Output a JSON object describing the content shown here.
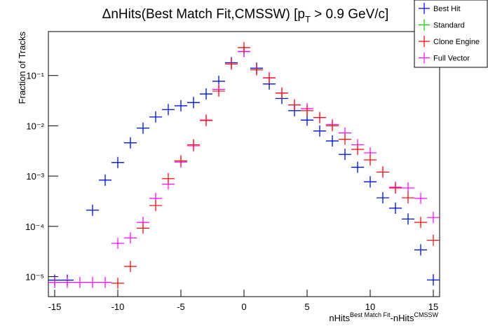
{
  "chart_data": {
    "type": "errorbar",
    "title": [
      "ΔnHits(Best Match Fit,CMSSW) [p",
      "T",
      " > 0.9 GeV/c]"
    ],
    "x_label": [
      "nHits",
      "Best Match Fit",
      "-nHits",
      "CMSSW"
    ],
    "y_label": "Fraction of Tracks",
    "log_y": true,
    "legend": "top-right",
    "x": [
      -15,
      -14,
      -13,
      -12,
      -11,
      -10,
      -9,
      -8,
      -7,
      -6,
      -5,
      -4,
      -3,
      -2,
      -1,
      0,
      1,
      2,
      3,
      4,
      5,
      6,
      7,
      8,
      9,
      10,
      11,
      12,
      13,
      14,
      15
    ],
    "xlim": [
      -15.5,
      15.5
    ],
    "xticks": [
      -15,
      -10,
      -5,
      0,
      5,
      10,
      15
    ],
    "ylim": [
      4e-06,
      0.75
    ],
    "yticks": [
      {
        "value": 1e-05,
        "label": "10⁻⁵"
      },
      {
        "value": 0.0001,
        "label": "10⁻⁴"
      },
      {
        "value": 0.001,
        "label": "10⁻³"
      },
      {
        "value": 0.01,
        "label": "10⁻²"
      },
      {
        "value": 0.1,
        "label": "10⁻¹"
      }
    ],
    "series": [
      {
        "name": "Best Hit",
        "color": "#0000ff",
        "values": [
          8.5e-06,
          8.5e-06,
          null,
          0.00021,
          0.00083,
          0.00186,
          0.0046,
          0.009,
          0.015,
          0.021,
          0.025,
          0.029,
          0.043,
          0.077,
          0.18,
          0.3,
          0.14,
          0.068,
          0.035,
          0.02,
          0.013,
          0.0079,
          0.005,
          0.0027,
          0.0015,
          0.00077,
          0.00037,
          0.00023,
          0.00014,
          3.4e-05,
          8.6e-06
        ]
      },
      {
        "name": "Standard",
        "color": "#00cc00",
        "values": [
          8.5e-06,
          8.5e-06,
          null,
          0.00021,
          0.00083,
          0.00186,
          0.0046,
          0.009,
          0.015,
          0.021,
          0.025,
          0.029,
          0.043,
          0.077,
          0.18,
          0.3,
          0.14,
          0.068,
          0.035,
          0.02,
          0.013,
          0.0079,
          0.005,
          0.0027,
          0.0015,
          0.00077,
          0.00037,
          0.00023,
          0.00014,
          3.4e-05,
          8.6e-06
        ]
      },
      {
        "name": "Clone Engine",
        "color": "#ff0000",
        "values": [
          null,
          null,
          null,
          null,
          null,
          7.4e-06,
          1.6e-05,
          9.2e-05,
          0.00026,
          0.00089,
          0.002,
          0.0042,
          0.0128,
          0.049,
          0.17,
          0.36,
          0.13,
          0.09,
          0.045,
          0.026,
          0.02,
          0.0146,
          0.01,
          0.0054,
          0.0034,
          0.0021,
          0.0012,
          0.00058,
          0.00037,
          0.00012,
          5.3e-05
        ]
      },
      {
        "name": "Full Vector",
        "color": "#ff00ff",
        "values": [
          7.7e-06,
          7.7e-06,
          7.7e-06,
          7.7e-06,
          7.7e-06,
          4.6e-05,
          5.9e-05,
          0.00012,
          0.00036,
          0.00069,
          0.0019,
          0.004,
          0.013,
          0.053,
          0.17,
          0.3,
          0.13,
          0.09,
          0.045,
          0.026,
          0.022,
          0.0146,
          0.0106,
          0.0072,
          0.0042,
          0.0029,
          0.0012,
          0.0006,
          0.00058,
          0.00036,
          0.00015
        ]
      }
    ]
  }
}
